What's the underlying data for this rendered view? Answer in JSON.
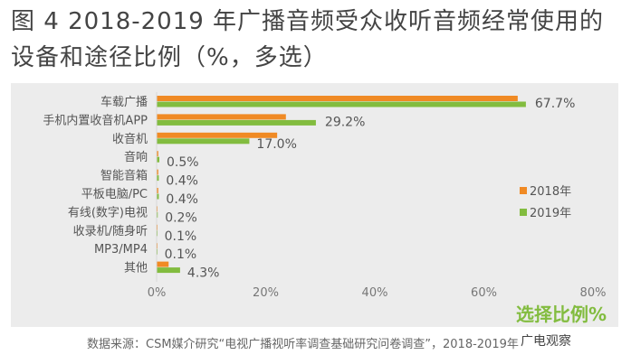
{
  "title": "图 4  2018-2019 年广播音频受众收听音频经常使用的设备和途径比例（%，多选）",
  "source": "数据来源：CSM媒介研究“电视广播视听率调查基础研究问卷调查”，2018-2019年",
  "watermark": "广电观察",
  "colors": {
    "2018": "#f08a24",
    "2019": "#82bc3f"
  },
  "chart_data": {
    "type": "bar",
    "orientation": "horizontal",
    "categories": [
      "车载广播",
      "手机内置收音机APP",
      "收音机",
      "音响",
      "智能音箱",
      "平板电脑/PC",
      "有线(数字)电视",
      "收录机/随身听",
      "MP3/MP4",
      "其他"
    ],
    "series": [
      {
        "name": "2018年",
        "values": [
          66.2,
          23.7,
          22.1,
          0.3,
          0.3,
          0.3,
          0.1,
          0.1,
          0.05,
          2.2
        ]
      },
      {
        "name": "2019年",
        "values": [
          67.7,
          29.2,
          17.0,
          0.5,
          0.4,
          0.4,
          0.2,
          0.1,
          0.1,
          4.3
        ]
      }
    ],
    "data_labels": [
      "67.7%",
      "29.2%",
      "17.0%",
      "0.5%",
      "0.4%",
      "0.4%",
      "0.2%",
      "0.1%",
      "0.1%",
      "4.3%"
    ],
    "xlabel": "选择比例%",
    "xticks": [
      "0%",
      "20%",
      "40%",
      "60%",
      "80%"
    ],
    "xlim": [
      0,
      80
    ],
    "legend_position": "right"
  }
}
